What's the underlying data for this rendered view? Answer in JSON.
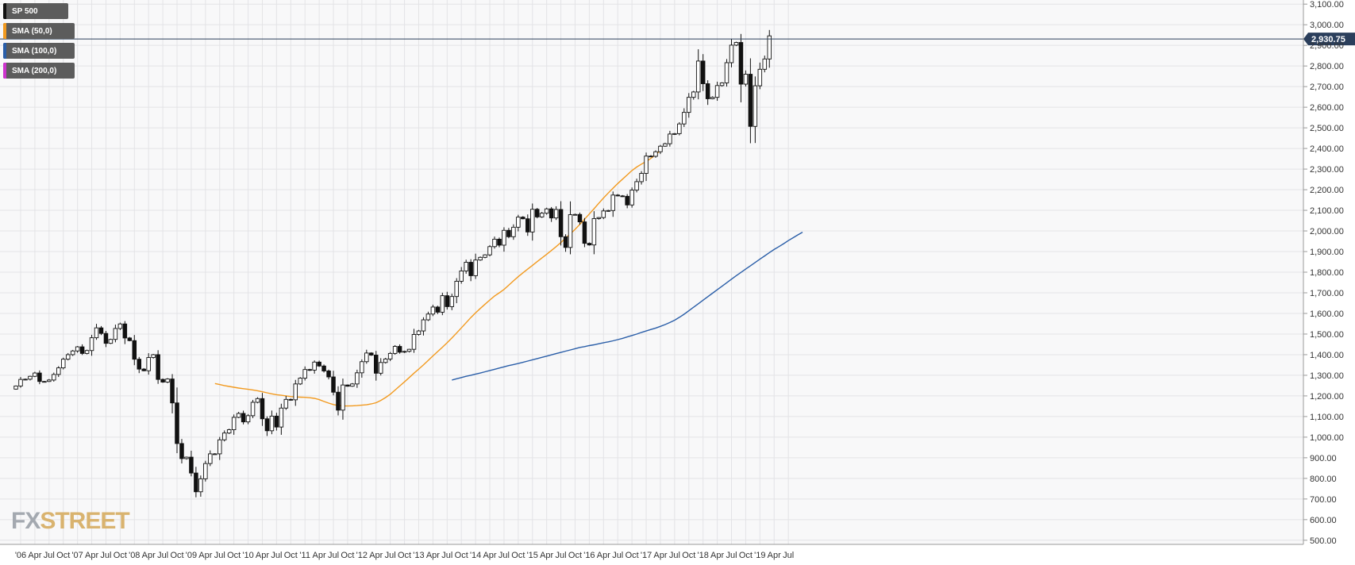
{
  "legend": [
    {
      "label": "SP 500",
      "color": "#111111"
    },
    {
      "label": "SMA (50,0)",
      "color": "#f29a1f"
    },
    {
      "label": "SMA (100,0)",
      "color": "#2a5ea8"
    },
    {
      "label": "SMA (200,0)",
      "color": "#cc33cc"
    }
  ],
  "logo": {
    "part1": "FX",
    "part2": "STREET"
  },
  "chart_data": {
    "type": "candlestick",
    "instrument": "SP 500",
    "interval": "monthly",
    "last_price_label": "2,930.75",
    "last_price": 2930.75,
    "ylim": [
      480,
      3120
    ],
    "y_ticks": [
      500,
      600,
      700,
      800,
      900,
      1000,
      1100,
      1200,
      1300,
      1400,
      1500,
      1600,
      1700,
      1800,
      1900,
      2000,
      2100,
      2200,
      2300,
      2400,
      2500,
      2600,
      2700,
      2800,
      2900,
      3000,
      3100
    ],
    "y_tick_labels": [
      "500.00",
      "600.00",
      "700.00",
      "800.00",
      "900.00",
      "1,000.00",
      "1,100.00",
      "1,200.00",
      "1,300.00",
      "1,400.00",
      "1,500.00",
      "1,600.00",
      "1,700.00",
      "1,800.00",
      "1,900.00",
      "2,000.00",
      "2,100.00",
      "2,200.00",
      "2,300.00",
      "2,400.00",
      "2,500.00",
      "2,600.00",
      "2,700.00",
      "2,800.00",
      "2,900.00",
      "3,000.00",
      "3,100.00"
    ],
    "x_range": [
      "2005-11",
      "2019-08"
    ],
    "x_ticks": [
      "2006-01",
      "2006-04",
      "2006-07",
      "2006-10",
      "2007-01",
      "2007-04",
      "2007-07",
      "2007-10",
      "2008-01",
      "2008-04",
      "2008-07",
      "2008-10",
      "2009-01",
      "2009-04",
      "2009-07",
      "2009-10",
      "2010-01",
      "2010-04",
      "2010-07",
      "2010-10",
      "2011-01",
      "2011-04",
      "2011-07",
      "2011-10",
      "2012-01",
      "2012-04",
      "2012-07",
      "2012-10",
      "2013-01",
      "2013-04",
      "2013-07",
      "2013-10",
      "2014-01",
      "2014-04",
      "2014-07",
      "2014-10",
      "2015-01",
      "2015-04",
      "2015-07",
      "2015-10",
      "2016-01",
      "2016-04",
      "2016-07",
      "2016-10",
      "2017-01",
      "2017-04",
      "2017-07",
      "2017-10",
      "2018-01",
      "2018-04",
      "2018-07",
      "2018-10",
      "2019-01",
      "2019-04",
      "2019-07"
    ],
    "x_tick_labels": [
      "'06",
      "Apr",
      "Jul",
      "Oct",
      "'07",
      "Apr",
      "Jul",
      "Oct",
      "'08",
      "Apr",
      "Jul",
      "Oct",
      "'09",
      "Apr",
      "Jul",
      "Oct",
      "'10",
      "Apr",
      "Jul",
      "Oct",
      "'11",
      "Apr",
      "Jul",
      "Oct",
      "'12",
      "Apr",
      "Jul",
      "Oct",
      "'13",
      "Apr",
      "Jul",
      "Oct",
      "'14",
      "Apr",
      "Jul",
      "Oct",
      "'15",
      "Apr",
      "Jul",
      "Oct",
      "'16",
      "Apr",
      "Jul",
      "Oct",
      "'17",
      "Apr",
      "Jul",
      "Oct",
      "'18",
      "Apr",
      "Jul",
      "Oct",
      "'19",
      "Apr",
      "Jul"
    ],
    "grid": true,
    "legend_position": "top-left",
    "y_axis_position": "right",
    "candles": {
      "start": "2005-12",
      "close": [
        1248,
        1280,
        1281,
        1295,
        1311,
        1270,
        1270,
        1277,
        1304,
        1336,
        1378,
        1400,
        1418,
        1438,
        1406,
        1420,
        1482,
        1530,
        1503,
        1455,
        1474,
        1527,
        1549,
        1481,
        1468,
        1378,
        1330,
        1322,
        1386,
        1400,
        1280,
        1267,
        1282,
        1166,
        969,
        896,
        903,
        826,
        735,
        798,
        872,
        919,
        919,
        987,
        1020,
        1036,
        1096,
        1115,
        1074,
        1104,
        1169,
        1187,
        1089,
        1031,
        1102,
        1049,
        1141,
        1183,
        1181,
        1258,
        1286,
        1328,
        1325,
        1364,
        1345,
        1321,
        1292,
        1218,
        1131,
        1253,
        1247,
        1258,
        1312,
        1366,
        1408,
        1398,
        1310,
        1362,
        1379,
        1406,
        1440,
        1412,
        1416,
        1426,
        1498,
        1515,
        1569,
        1597,
        1631,
        1606,
        1686,
        1633,
        1682,
        1756,
        1806,
        1848,
        1783,
        1859,
        1872,
        1884,
        1924,
        1960,
        1931,
        2003,
        1972,
        2018,
        2067,
        2059,
        1995,
        2105,
        2068,
        2086,
        2107,
        2063,
        2104,
        1972,
        1920,
        2079,
        2080,
        2044,
        1940,
        1932,
        2060,
        2065,
        2097,
        2099,
        2174,
        2170,
        2168,
        2126,
        2198,
        2239,
        2279,
        2363,
        2362,
        2384,
        2411,
        2423,
        2470,
        2472,
        2519,
        2575,
        2648,
        2674,
        2824,
        2714,
        2641,
        2648,
        2705,
        2718,
        2816,
        2901,
        2914,
        2712,
        2760,
        2507,
        2704,
        2784,
        2834,
        2946
      ],
      "note": "Monthly closes read off the right-hand price axis; each candle opens at the prior month's close."
    },
    "series": [
      {
        "name": "SMA (50,0)",
        "color": "#f29a1f",
        "start": "2009-06",
        "values": [
          1260,
          1255,
          1250,
          1246,
          1242,
          1238,
          1235,
          1232,
          1229,
          1225,
          1220,
          1215,
          1210,
          1206,
          1203,
          1200,
          1197,
          1195,
          1194,
          1193,
          1191,
          1188,
          1182,
          1173,
          1165,
          1158,
          1153,
          1151,
          1151,
          1152,
          1153,
          1155,
          1157,
          1161,
          1167,
          1178,
          1192,
          1208,
          1228,
          1248,
          1268,
          1289,
          1310,
          1330,
          1350,
          1372,
          1394,
          1415,
          1436,
          1458,
          1481,
          1505,
          1530,
          1555,
          1580,
          1603,
          1624,
          1645,
          1665,
          1684,
          1700,
          1716,
          1737,
          1758,
          1778,
          1797,
          1815,
          1833,
          1851,
          1869,
          1887,
          1905,
          1924,
          1944,
          1965,
          1986,
          2008,
          2032,
          2057,
          2082,
          2108,
          2134,
          2160,
          2184,
          2207,
          2230,
          2251,
          2272,
          2293,
          2310,
          2324,
          2337,
          2352,
          2370,
          2390
        ]
      },
      {
        "name": "SMA (100,0)",
        "color": "#2a5ea8",
        "start": "2013-08",
        "values": [
          1277,
          1283,
          1289,
          1295,
          1300,
          1306,
          1311,
          1317,
          1323,
          1329,
          1335,
          1341,
          1347,
          1352,
          1357,
          1363,
          1369,
          1375,
          1381,
          1387,
          1393,
          1399,
          1405,
          1411,
          1417,
          1423,
          1429,
          1435,
          1439,
          1444,
          1448,
          1453,
          1458,
          1462,
          1467,
          1473,
          1479,
          1486,
          1493,
          1500,
          1508,
          1515,
          1522,
          1529,
          1537,
          1546,
          1556,
          1567,
          1581,
          1596,
          1613,
          1630,
          1647,
          1664,
          1681,
          1698,
          1715,
          1732,
          1749,
          1766,
          1783,
          1799,
          1815,
          1831,
          1847,
          1863,
          1879,
          1895,
          1910,
          1924,
          1938,
          1953,
          1967,
          1981,
          1994
        ]
      }
    ]
  }
}
